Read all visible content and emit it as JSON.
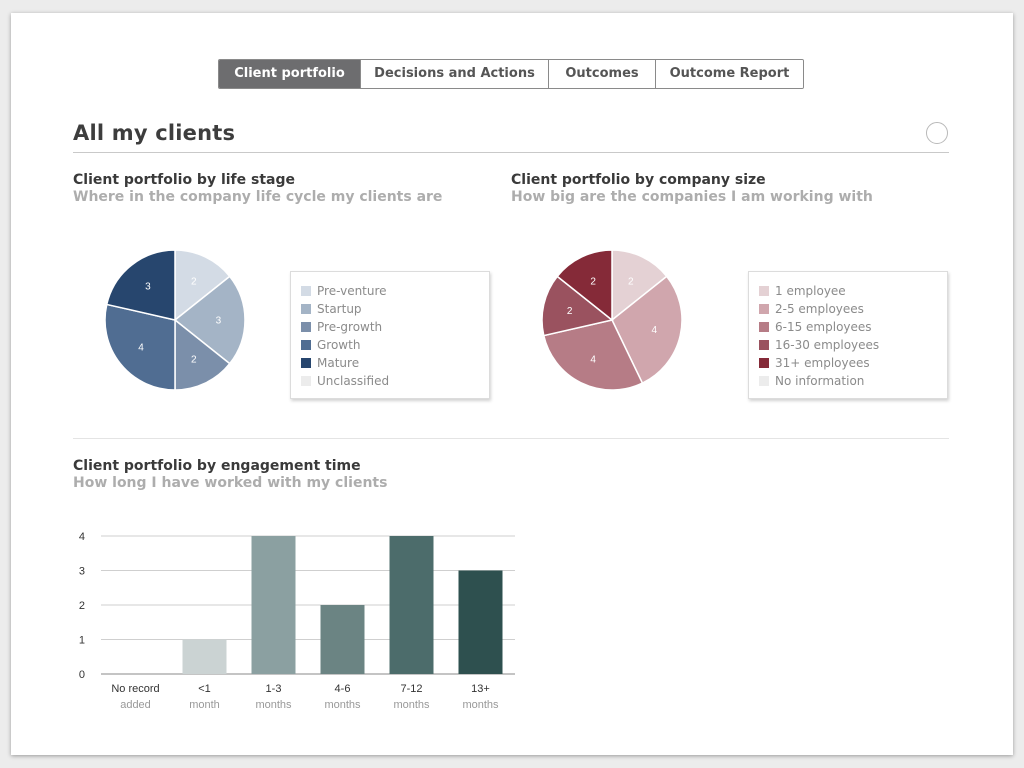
{
  "tabs": [
    {
      "label": "Client portfolio",
      "active": true
    },
    {
      "label": "Decisions and Actions",
      "active": false
    },
    {
      "label": "Outcomes",
      "active": false
    },
    {
      "label": "Outcome Report",
      "active": false
    }
  ],
  "page_title": "All my clients",
  "sections": {
    "life_stage": {
      "title": "Client portfolio by life stage",
      "subtitle": "Where in the company life cycle my clients are"
    },
    "company_size": {
      "title": "Client portfolio by company size",
      "subtitle": "How big are the companies I am working with"
    },
    "engagement": {
      "title": "Client portfolio by engagement time",
      "subtitle": "How long I have worked with my clients"
    }
  },
  "chart_data": [
    {
      "type": "pie",
      "title": "Client portfolio by life stage",
      "subtitle": "Where in the company life cycle my clients are",
      "legend_position": "right",
      "slices": [
        {
          "label": "Pre-venture",
          "value": 2,
          "color": "#d3dbe5"
        },
        {
          "label": "Startup",
          "value": 3,
          "color": "#a4b4c6"
        },
        {
          "label": "Pre-growth",
          "value": 2,
          "color": "#7b8faa"
        },
        {
          "label": "Growth",
          "value": 4,
          "color": "#506d92"
        },
        {
          "label": "Mature",
          "value": 3,
          "color": "#27466e"
        },
        {
          "label": "Unclassified",
          "value": 0,
          "color": "#ececec"
        }
      ]
    },
    {
      "type": "pie",
      "title": "Client portfolio by company size",
      "subtitle": "How big are the companies I am working with",
      "legend_position": "right",
      "slices": [
        {
          "label": "1 employee",
          "value": 2,
          "color": "#e4d1d4"
        },
        {
          "label": "2-5 employees",
          "value": 4,
          "color": "#d0a6ad"
        },
        {
          "label": "6-15 employees",
          "value": 4,
          "color": "#b67c86"
        },
        {
          "label": "16-30 employees",
          "value": 2,
          "color": "#9a525f"
        },
        {
          "label": "31+ employees",
          "value": 2,
          "color": "#852a38"
        },
        {
          "label": "No information",
          "value": 0,
          "color": "#ececec"
        }
      ]
    },
    {
      "type": "bar",
      "title": "Client portfolio by engagement time",
      "subtitle": "How long I have worked with my clients",
      "categories": [
        {
          "line1": "No record",
          "line2": "added"
        },
        {
          "line1": "<1",
          "line2": "month"
        },
        {
          "line1": "1-3",
          "line2": "months"
        },
        {
          "line1": "4-6",
          "line2": "months"
        },
        {
          "line1": "7-12",
          "line2": "months"
        },
        {
          "line1": "13+",
          "line2": "months"
        }
      ],
      "values": [
        0,
        1,
        4,
        2,
        4,
        3
      ],
      "colors": [
        "#e8ecec",
        "#cbd3d3",
        "#8ba0a1",
        "#6b8483",
        "#4c6c6b",
        "#2e504f"
      ],
      "ylim": [
        0,
        4
      ],
      "yticks": [
        "0",
        "1",
        "2",
        "3",
        "4"
      ],
      "grid": true
    }
  ]
}
